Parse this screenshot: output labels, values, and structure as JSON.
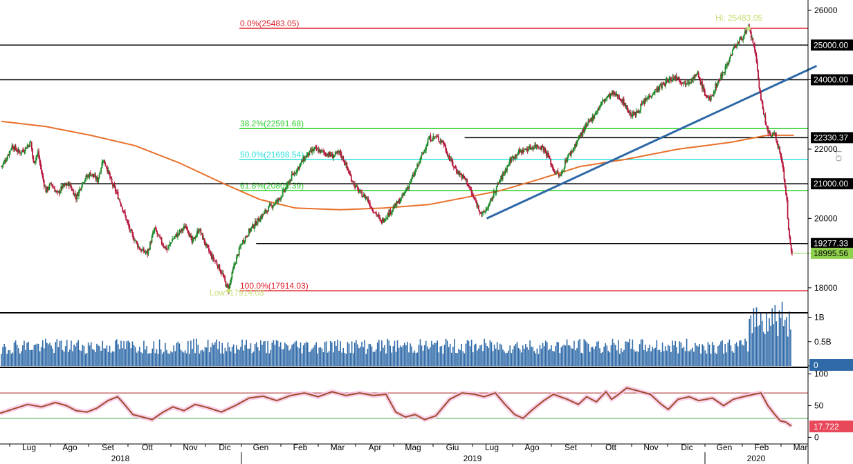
{
  "chart_data": [
    {
      "type": "candlestick",
      "panel": "price",
      "ylim": [
        17300,
        26300
      ],
      "yticks": [
        18000,
        20000,
        22000,
        24000,
        26000
      ],
      "price_path": [
        [
          0,
          21500
        ],
        [
          5,
          21700
        ],
        [
          12,
          22100
        ],
        [
          20,
          21900
        ],
        [
          26,
          22000
        ],
        [
          33,
          22200
        ],
        [
          36,
          21600
        ],
        [
          41,
          21900
        ],
        [
          46,
          21200
        ],
        [
          50,
          20800
        ],
        [
          56,
          21000
        ],
        [
          63,
          20700
        ],
        [
          68,
          20900
        ],
        [
          76,
          21000
        ],
        [
          84,
          20600
        ],
        [
          92,
          21100
        ],
        [
          100,
          21300
        ],
        [
          108,
          21100
        ],
        [
          114,
          21700
        ],
        [
          118,
          21500
        ],
        [
          124,
          21000
        ],
        [
          130,
          20700
        ],
        [
          136,
          20300
        ],
        [
          145,
          19600
        ],
        [
          156,
          19100
        ],
        [
          164,
          19000
        ],
        [
          172,
          19700
        ],
        [
          180,
          19300
        ],
        [
          186,
          19100
        ],
        [
          192,
          19400
        ],
        [
          200,
          19600
        ],
        [
          208,
          19800
        ],
        [
          214,
          19300
        ],
        [
          222,
          19700
        ],
        [
          230,
          19200
        ],
        [
          236,
          18900
        ],
        [
          242,
          18700
        ],
        [
          248,
          18400
        ],
        [
          252,
          18100
        ],
        [
          255,
          17950
        ],
        [
          262,
          18700
        ],
        [
          270,
          19300
        ],
        [
          280,
          19700
        ],
        [
          290,
          20000
        ],
        [
          300,
          20300
        ],
        [
          310,
          20500
        ],
        [
          318,
          20800
        ],
        [
          326,
          21200
        ],
        [
          334,
          21500
        ],
        [
          342,
          21800
        ],
        [
          352,
          22000
        ],
        [
          362,
          21900
        ],
        [
          372,
          21800
        ],
        [
          380,
          21900
        ],
        [
          386,
          21600
        ],
        [
          392,
          21200
        ],
        [
          398,
          20900
        ],
        [
          404,
          20700
        ],
        [
          410,
          20600
        ],
        [
          416,
          20300
        ],
        [
          422,
          20100
        ],
        [
          426,
          19900
        ],
        [
          430,
          20000
        ],
        [
          440,
          20300
        ],
        [
          450,
          20600
        ],
        [
          456,
          20900
        ],
        [
          464,
          21300
        ],
        [
          472,
          21800
        ],
        [
          480,
          22300
        ],
        [
          488,
          22350
        ],
        [
          496,
          22200
        ],
        [
          502,
          21800
        ],
        [
          508,
          21500
        ],
        [
          514,
          21300
        ],
        [
          522,
          21100
        ],
        [
          530,
          20600
        ],
        [
          536,
          20300
        ],
        [
          540,
          20100
        ],
        [
          548,
          20400
        ],
        [
          556,
          20900
        ],
        [
          564,
          21300
        ],
        [
          572,
          21700
        ],
        [
          580,
          21900
        ],
        [
          590,
          22000
        ],
        [
          600,
          22100
        ],
        [
          608,
          22050
        ],
        [
          614,
          21800
        ],
        [
          620,
          21400
        ],
        [
          628,
          21200
        ],
        [
          634,
          21700
        ],
        [
          642,
          22000
        ],
        [
          650,
          22400
        ],
        [
          658,
          22700
        ],
        [
          666,
          23000
        ],
        [
          676,
          23400
        ],
        [
          686,
          23600
        ],
        [
          694,
          23500
        ],
        [
          700,
          23300
        ],
        [
          706,
          23000
        ],
        [
          712,
          23000
        ],
        [
          720,
          23300
        ],
        [
          730,
          23600
        ],
        [
          740,
          23800
        ],
        [
          750,
          24000
        ],
        [
          758,
          24100
        ],
        [
          766,
          23900
        ],
        [
          774,
          24000
        ],
        [
          782,
          24150
        ],
        [
          790,
          23600
        ],
        [
          796,
          23400
        ],
        [
          802,
          23800
        ],
        [
          810,
          24200
        ],
        [
          816,
          24500
        ],
        [
          822,
          24900
        ],
        [
          828,
          25100
        ],
        [
          834,
          25300
        ],
        [
          839,
          25483
        ],
        [
          844,
          25100
        ],
        [
          848,
          24500
        ],
        [
          852,
          23600
        ],
        [
          856,
          23000
        ],
        [
          860,
          22600
        ],
        [
          864,
          22300
        ],
        [
          868,
          22500
        ],
        [
          872,
          22100
        ],
        [
          876,
          21700
        ],
        [
          879,
          21200
        ],
        [
          882,
          20500
        ],
        [
          884,
          19600
        ],
        [
          886,
          19200
        ],
        [
          888,
          18996
        ]
      ],
      "moving_average_path": [
        [
          0,
          22800
        ],
        [
          50,
          22650
        ],
        [
          100,
          22400
        ],
        [
          150,
          22100
        ],
        [
          200,
          21600
        ],
        [
          250,
          21000
        ],
        [
          290,
          20550
        ],
        [
          330,
          20300
        ],
        [
          380,
          20250
        ],
        [
          430,
          20300
        ],
        [
          480,
          20400
        ],
        [
          520,
          20600
        ],
        [
          560,
          20800
        ],
        [
          600,
          21100
        ],
        [
          650,
          21500
        ],
        [
          700,
          21700
        ],
        [
          760,
          22000
        ],
        [
          820,
          22200
        ],
        [
          860,
          22400
        ],
        [
          880,
          22400
        ],
        [
          890,
          22400
        ]
      ],
      "trend_line": [
        [
          545,
          20000
        ],
        [
          900,
          24300
        ]
      ],
      "horizontal_levels": [
        {
          "value": 25000,
          "color": "#000000",
          "from": 0,
          "to": 1
        },
        {
          "value": 24000,
          "color": "#000000",
          "from": 0,
          "to": 1
        },
        {
          "value": 22330.37,
          "color": "#000000",
          "from": 0.575,
          "to": 1
        },
        {
          "value": 21000,
          "color": "#000000",
          "from": 0.075,
          "to": 1
        },
        {
          "value": 19277.33,
          "color": "#000000",
          "from": 0.317,
          "to": 1
        }
      ],
      "fibonacci": [
        {
          "label": "0.0%(25483.05)",
          "value": 25483.05,
          "color": "#e0202a"
        },
        {
          "label": "38.2%(22591.68)",
          "value": 22591.68,
          "color": "#2cd12c"
        },
        {
          "label": "50.0%(21698.54)",
          "value": 21698.54,
          "color": "#30e0e0"
        },
        {
          "label": "61.8%(20805.39)",
          "value": 20805.39,
          "color": "#2cd12c"
        },
        {
          "label": "100.0%(17914.03)",
          "value": 17914.03,
          "color": "#e0202a"
        }
      ],
      "annotations": {
        "high": "Hi: 25483.05",
        "low": "Low: 17914.03",
        "watermark": "LO"
      },
      "right_tags": [
        {
          "value": 25000,
          "text": "25000.00",
          "style": "black"
        },
        {
          "value": 24000,
          "text": "24000.00",
          "style": "black"
        },
        {
          "value": 22330.37,
          "text": "22330.37",
          "style": "black"
        },
        {
          "value": 21000,
          "text": "21000.00",
          "style": "black"
        },
        {
          "value": 19277.33,
          "text": "19277.33",
          "style": "black"
        },
        {
          "value": 18995.56,
          "text": "18995.56",
          "style": "green"
        }
      ]
    },
    {
      "type": "bar",
      "panel": "volume",
      "ylim": [
        0,
        1.05
      ],
      "yticks": [
        {
          "value": 1.0,
          "label": "1B"
        },
        {
          "value": 0.5,
          "label": "0.5B"
        },
        {
          "value": 0,
          "label": "0"
        }
      ],
      "typical_level": 0.35,
      "late_level": 0.85,
      "last_tag": "0"
    },
    {
      "type": "line",
      "panel": "rsi",
      "ylim": [
        -5,
        105
      ],
      "yticks": [
        100,
        50,
        0
      ],
      "overbought": 70,
      "oversold": 30,
      "path": [
        [
          0,
          38
        ],
        [
          20,
          45
        ],
        [
          40,
          52
        ],
        [
          60,
          48
        ],
        [
          80,
          55
        ],
        [
          96,
          50
        ],
        [
          110,
          42
        ],
        [
          126,
          40
        ],
        [
          140,
          46
        ],
        [
          156,
          58
        ],
        [
          170,
          64
        ],
        [
          180,
          52
        ],
        [
          192,
          36
        ],
        [
          206,
          32
        ],
        [
          220,
          28
        ],
        [
          236,
          40
        ],
        [
          250,
          48
        ],
        [
          266,
          42
        ],
        [
          282,
          52
        ],
        [
          300,
          47
        ],
        [
          320,
          40
        ],
        [
          340,
          50
        ],
        [
          360,
          62
        ],
        [
          380,
          65
        ],
        [
          400,
          58
        ],
        [
          420,
          66
        ],
        [
          440,
          70
        ],
        [
          460,
          64
        ],
        [
          480,
          72
        ],
        [
          500,
          66
        ],
        [
          520,
          70
        ],
        [
          540,
          66
        ],
        [
          558,
          68
        ],
        [
          572,
          40
        ],
        [
          586,
          32
        ],
        [
          600,
          36
        ],
        [
          614,
          28
        ],
        [
          630,
          34
        ],
        [
          650,
          60
        ],
        [
          668,
          70
        ],
        [
          686,
          68
        ],
        [
          700,
          64
        ],
        [
          716,
          70
        ],
        [
          730,
          52
        ],
        [
          744,
          36
        ],
        [
          756,
          30
        ],
        [
          770,
          44
        ],
        [
          786,
          58
        ],
        [
          800,
          68
        ],
        [
          820,
          60
        ],
        [
          836,
          52
        ],
        [
          848,
          64
        ],
        [
          862,
          56
        ],
        [
          876,
          72
        ],
        [
          884,
          60
        ],
        [
          892,
          66
        ],
        [
          906,
          78
        ],
        [
          920,
          74
        ],
        [
          940,
          68
        ],
        [
          956,
          52
        ],
        [
          966,
          44
        ],
        [
          980,
          60
        ],
        [
          996,
          64
        ],
        [
          1010,
          58
        ],
        [
          1030,
          62
        ],
        [
          1046,
          50
        ],
        [
          1060,
          60
        ],
        [
          1074,
          64
        ],
        [
          1090,
          68
        ],
        [
          1100,
          70
        ],
        [
          1110,
          50
        ],
        [
          1120,
          36
        ],
        [
          1128,
          26
        ],
        [
          1136,
          24
        ],
        [
          1144,
          17.722
        ]
      ],
      "last_tag": "17.722"
    }
  ],
  "x_axis": {
    "months": [
      "Lug",
      "Ago",
      "Set",
      "Ott",
      "Nov",
      "Dic",
      "Gen",
      "Feb",
      "Mar",
      "Apr",
      "Mag",
      "Giu",
      "Lug",
      "Ago",
      "Set",
      "Ott",
      "Nov",
      "Dic",
      "Gen",
      "Feb",
      "Mar"
    ],
    "years": [
      "2018",
      "2019",
      "2020"
    ]
  },
  "colors": {
    "candle_up": "#1e8a2a",
    "candle_down": "#b6163c",
    "moving_average": "#e8702a",
    "trend_line": "#2e68a6",
    "volume_bar": "#2e6aa8",
    "rsi_line": "#a14b2c",
    "rsi_band": "#f6c6e6",
    "overbought_line": "#a82020",
    "oversold_line": "#3aa23a",
    "level_label": "#c8e07a"
  }
}
